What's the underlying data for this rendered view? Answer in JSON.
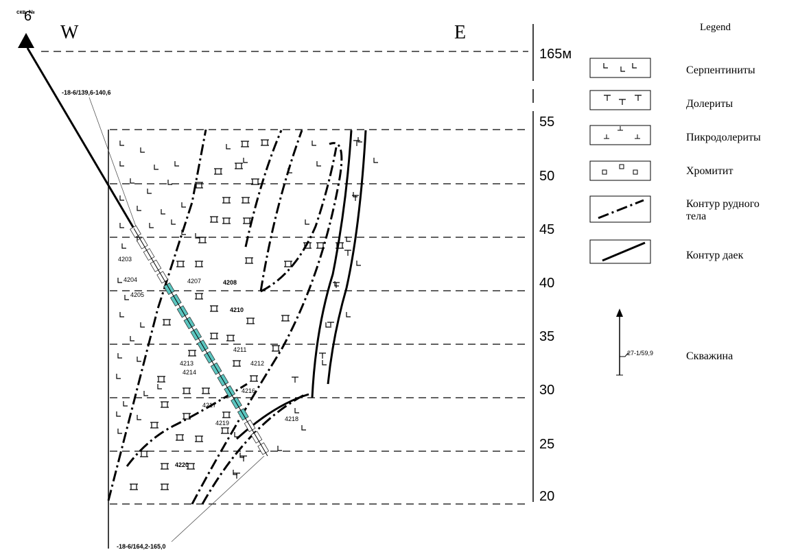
{
  "header": {
    "well_label": "скв. №",
    "well_number": "6",
    "west": "W",
    "east": "E"
  },
  "scale": {
    "labels": [
      "165м",
      "55",
      "50",
      "45",
      "40",
      "35",
      "30",
      "25",
      "20"
    ]
  },
  "core_labels": {
    "top": "-18-6/139,6-140,6",
    "bottom": "-18-6/164,2-165,0"
  },
  "samples": [
    "4203",
    "4204",
    "4205",
    "4207",
    "4208",
    "4210",
    "4211",
    "4212",
    "4213",
    "4214",
    "4216",
    "4217",
    "4218",
    "4219",
    "4220"
  ],
  "legend": {
    "title": "Legend",
    "items": [
      "Серпентиниты",
      "Долериты",
      "Пикродолериты",
      "Хромитит",
      "Контур рудного",
      "тела",
      "Контур даек",
      "Скважина"
    ],
    "well_example": "27-1/59,9"
  }
}
